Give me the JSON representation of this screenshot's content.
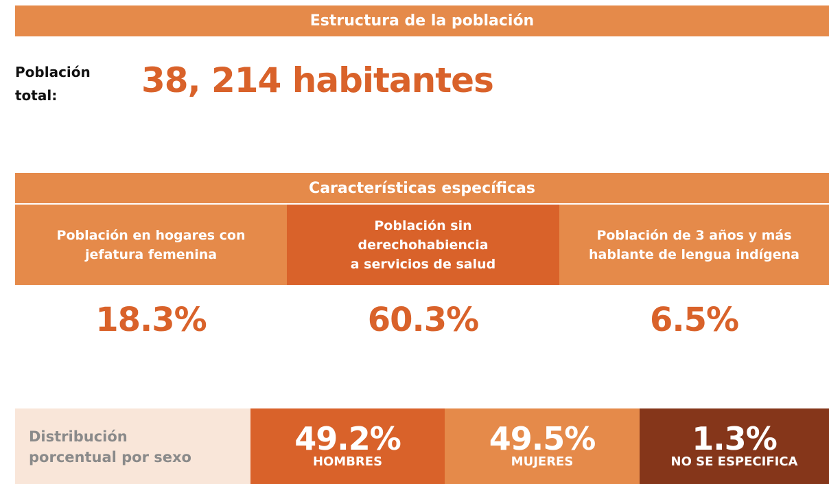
{
  "header": {
    "title": "Estructura de la población"
  },
  "total": {
    "label_lines": [
      "Población",
      "total:"
    ],
    "value": "38, 214 habitantes"
  },
  "specific": {
    "title": "Características específicas",
    "items": [
      {
        "label_lines": [
          "Población en hogares con",
          "jefatura femenina"
        ],
        "value": "18.3%"
      },
      {
        "label_lines": [
          "Población sin",
          "derechohabiencia",
          "a servicios de salud"
        ],
        "value": "60.3%"
      },
      {
        "label_lines": [
          "Población de 3 años y más",
          "hablante de lengua indígena"
        ],
        "value": "6.5%"
      }
    ]
  },
  "sex": {
    "label_lines": [
      "Distribución",
      "porcentual por sexo"
    ],
    "items": [
      {
        "value": "49.2%",
        "label": "HOMBRES"
      },
      {
        "value": "49.5%",
        "label": "MUJERES"
      },
      {
        "value": "1.3%",
        "label": "NO SE ESPECIFICA"
      }
    ]
  }
}
